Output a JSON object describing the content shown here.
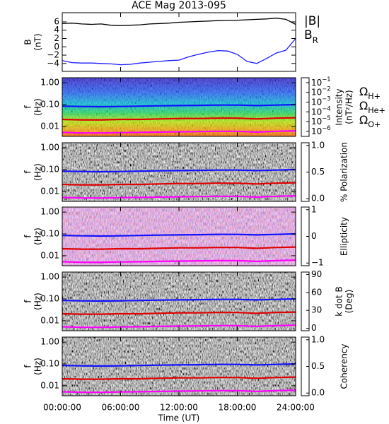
{
  "chart_data": [
    {
      "type": "line",
      "title": "ACE Mag 2013-095",
      "ylabel": [
        "B",
        "(nT)"
      ],
      "x": [
        0,
        1,
        2,
        3,
        4,
        5,
        6,
        7,
        8,
        9,
        10,
        11,
        12,
        13,
        14,
        15,
        16,
        17,
        18,
        19,
        20,
        21,
        22,
        23,
        24
      ],
      "xlim": [
        0,
        24
      ],
      "ylim": [
        -5.9,
        8.2
      ],
      "yticks": [
        6,
        4,
        2,
        0,
        {
          "value": -2,
          "label": "−2"
        },
        {
          "value": -4,
          "label": "−4"
        }
      ],
      "series": [
        {
          "name": "|B|",
          "color": "#000000",
          "values": [
            5.6,
            5.7,
            5.5,
            5.4,
            5.5,
            5.2,
            5.1,
            5.2,
            5.3,
            5.5,
            5.6,
            5.7,
            5.9,
            6.0,
            6.1,
            6.2,
            6.3,
            6.4,
            6.4,
            6.5,
            6.6,
            6.7,
            6.9,
            6.6,
            5.4
          ]
        },
        {
          "name": "BR",
          "color": "#1a1aff",
          "values": [
            -3.3,
            -3.8,
            -3.9,
            -3.9,
            -4.0,
            -4.1,
            -4.3,
            -4.2,
            -3.9,
            -3.7,
            -3.5,
            -3.3,
            -3.2,
            -2.4,
            -1.8,
            -1.3,
            -0.9,
            -1.0,
            -1.8,
            -3.5,
            -4.0,
            -2.8,
            -1.5,
            -0.8,
            2.0
          ]
        }
      ]
    },
    {
      "type": "spectrogram",
      "ylabel": [
        "f",
        "(Hz)"
      ],
      "log": true,
      "ylim": [
        0.0035,
        1.7
      ],
      "yticks": [
        {
          "value": 1,
          "label": "1.00"
        },
        {
          "value": 0.1,
          "label": "0.10"
        },
        {
          "value": 0.01,
          "label": "0.01"
        }
      ],
      "x": [
        0,
        2,
        4,
        6,
        8,
        10,
        12,
        14,
        16,
        18,
        20,
        22,
        24
      ],
      "series": [
        {
          "name": "ΩH+",
          "color": "#1010ff",
          "values": [
            0.085,
            0.082,
            0.08,
            0.082,
            0.085,
            0.088,
            0.09,
            0.092,
            0.095,
            0.095,
            0.09,
            0.095,
            0.1
          ]
        },
        {
          "name": "ΩHe+",
          "color": "#e00000",
          "values": [
            0.021,
            0.02,
            0.02,
            0.021,
            0.021,
            0.022,
            0.023,
            0.023,
            0.024,
            0.024,
            0.022,
            0.024,
            0.025
          ]
        },
        {
          "name": "ΩO+",
          "color": "#ff00ff",
          "values": [
            0.0053,
            0.005,
            0.005,
            0.0052,
            0.0053,
            0.0055,
            0.0057,
            0.0058,
            0.006,
            0.006,
            0.0055,
            0.006,
            0.0063
          ]
        }
      ],
      "colorbar": {
        "label": [
          "Intensity",
          "(nT²/Hz)"
        ],
        "colorscale": "rainbow",
        "log": true,
        "clim": [
          3e-07,
          0.32
        ],
        "ticks": [
          {
            "value": 0.1,
            "label": "10−1"
          },
          {
            "value": 0.01,
            "label": "10−2"
          },
          {
            "value": 0.001,
            "label": "10−3"
          },
          {
            "value": 0.0001,
            "label": "10−4"
          },
          {
            "value": 1e-05,
            "label": "10−5"
          },
          {
            "value": 1e-06,
            "label": "10−6"
          }
        ]
      }
    },
    {
      "type": "spectrogram",
      "ylabel": [
        "f",
        "(Hz)"
      ],
      "log": true,
      "ylim": [
        0.0035,
        1.7
      ],
      "yticks": [
        {
          "value": 1,
          "label": "1.00"
        },
        {
          "value": 0.1,
          "label": "0.10"
        },
        {
          "value": 0.01,
          "label": "0.01"
        }
      ],
      "colorbar": {
        "label": [
          "% Polarization"
        ],
        "colorscale": "gray",
        "clim": [
          -0.05,
          1.05
        ],
        "ticks": [
          {
            "value": 1,
            "label": "1.0"
          },
          0.5,
          {
            "value": 0,
            "label": "0.0"
          }
        ]
      }
    },
    {
      "type": "spectrogram",
      "ylabel": [
        "f",
        "(Hz)"
      ],
      "log": true,
      "ylim": [
        0.0035,
        1.7
      ],
      "yticks": [
        {
          "value": 1,
          "label": "1.00"
        },
        {
          "value": 0.1,
          "label": "0.10"
        },
        {
          "value": 0.01,
          "label": "0.01"
        }
      ],
      "colorbar": {
        "label": [
          "Ellipticity"
        ],
        "colorscale": "bwr",
        "clim": [
          -1.1,
          1.1
        ],
        "ticks": [
          1,
          0,
          {
            "value": -1,
            "label": "−1"
          }
        ]
      }
    },
    {
      "type": "spectrogram",
      "ylabel": [
        "f",
        "(Hz)"
      ],
      "log": true,
      "ylim": [
        0.0035,
        1.7
      ],
      "yticks": [
        {
          "value": 1,
          "label": "1.00"
        },
        {
          "value": 0.1,
          "label": "0.10"
        },
        {
          "value": 0.01,
          "label": "0.01"
        }
      ],
      "colorbar": {
        "label": [
          "k dot B",
          "(Deg)"
        ],
        "colorscale": "gray",
        "clim": [
          -4,
          94
        ],
        "ticks": [
          90,
          60,
          30,
          0
        ]
      }
    },
    {
      "type": "spectrogram",
      "ylabel": [
        "f",
        "(Hz)"
      ],
      "log": true,
      "ylim": [
        0.0035,
        1.7
      ],
      "yticks": [
        {
          "value": 1,
          "label": "1.00"
        },
        {
          "value": 0.1,
          "label": "0.10"
        },
        {
          "value": 0.01,
          "label": "0.01"
        }
      ],
      "colorbar": {
        "label": [
          "Coherency"
        ],
        "colorscale": "gray",
        "clim": [
          -0.05,
          1.05
        ],
        "ticks": [
          {
            "value": 1,
            "label": "1.0"
          },
          0.5,
          {
            "value": 0,
            "label": "0.0"
          }
        ]
      },
      "xlabel": "Time (UT)",
      "xticks": [
        {
          "value": 0,
          "label": "00:00:00"
        },
        {
          "value": 6,
          "label": "06:00:00"
        },
        {
          "value": 12,
          "label": "12:00:00"
        },
        {
          "value": 18,
          "label": "18:00:00"
        },
        {
          "value": 24,
          "label": "24:00:00"
        }
      ]
    }
  ]
}
